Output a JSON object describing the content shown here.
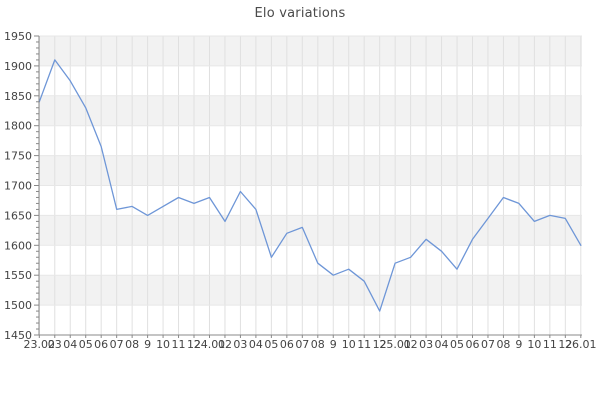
{
  "chart_data": {
    "type": "line",
    "title": "Elo variations",
    "series_name": "Elo",
    "x_labels": [
      "23.02",
      "03",
      "04",
      "05",
      "06",
      "07",
      "08",
      "9",
      "10",
      "11",
      "12",
      "24.01",
      "02",
      "03",
      "04",
      "05",
      "06",
      "07",
      "08",
      "9",
      "10",
      "11",
      "12",
      "25.01",
      "02",
      "03",
      "04",
      "05",
      "06",
      "07",
      "08",
      "9",
      "10",
      "11",
      "12",
      "26.01"
    ],
    "values": [
      1840,
      1910,
      1875,
      1830,
      1765,
      1660,
      1665,
      1650,
      1665,
      1680,
      1670,
      1680,
      1640,
      1690,
      1660,
      1580,
      1620,
      1630,
      1570,
      1550,
      1560,
      1540,
      1490,
      1570,
      1580,
      1610,
      1590,
      1560,
      1610,
      1645,
      1680,
      1670,
      1640,
      1650,
      1645,
      1600
    ],
    "ylim": [
      1450,
      1950
    ],
    "y_ticks": [
      1450,
      1500,
      1550,
      1600,
      1650,
      1700,
      1750,
      1800,
      1850,
      1900,
      1950
    ],
    "y_minor_step": 10,
    "grid": "both",
    "legend_position": "none",
    "xlabel": "",
    "ylabel": "",
    "colors": {
      "line": "#6e96d7",
      "band": "#f2f2f2",
      "grid_vertical": "#e0e0e0",
      "grid_horizontal": "#e7e7e7",
      "axis": "#888888",
      "tick_label": "#444444",
      "title": "#4a4a4a"
    }
  }
}
